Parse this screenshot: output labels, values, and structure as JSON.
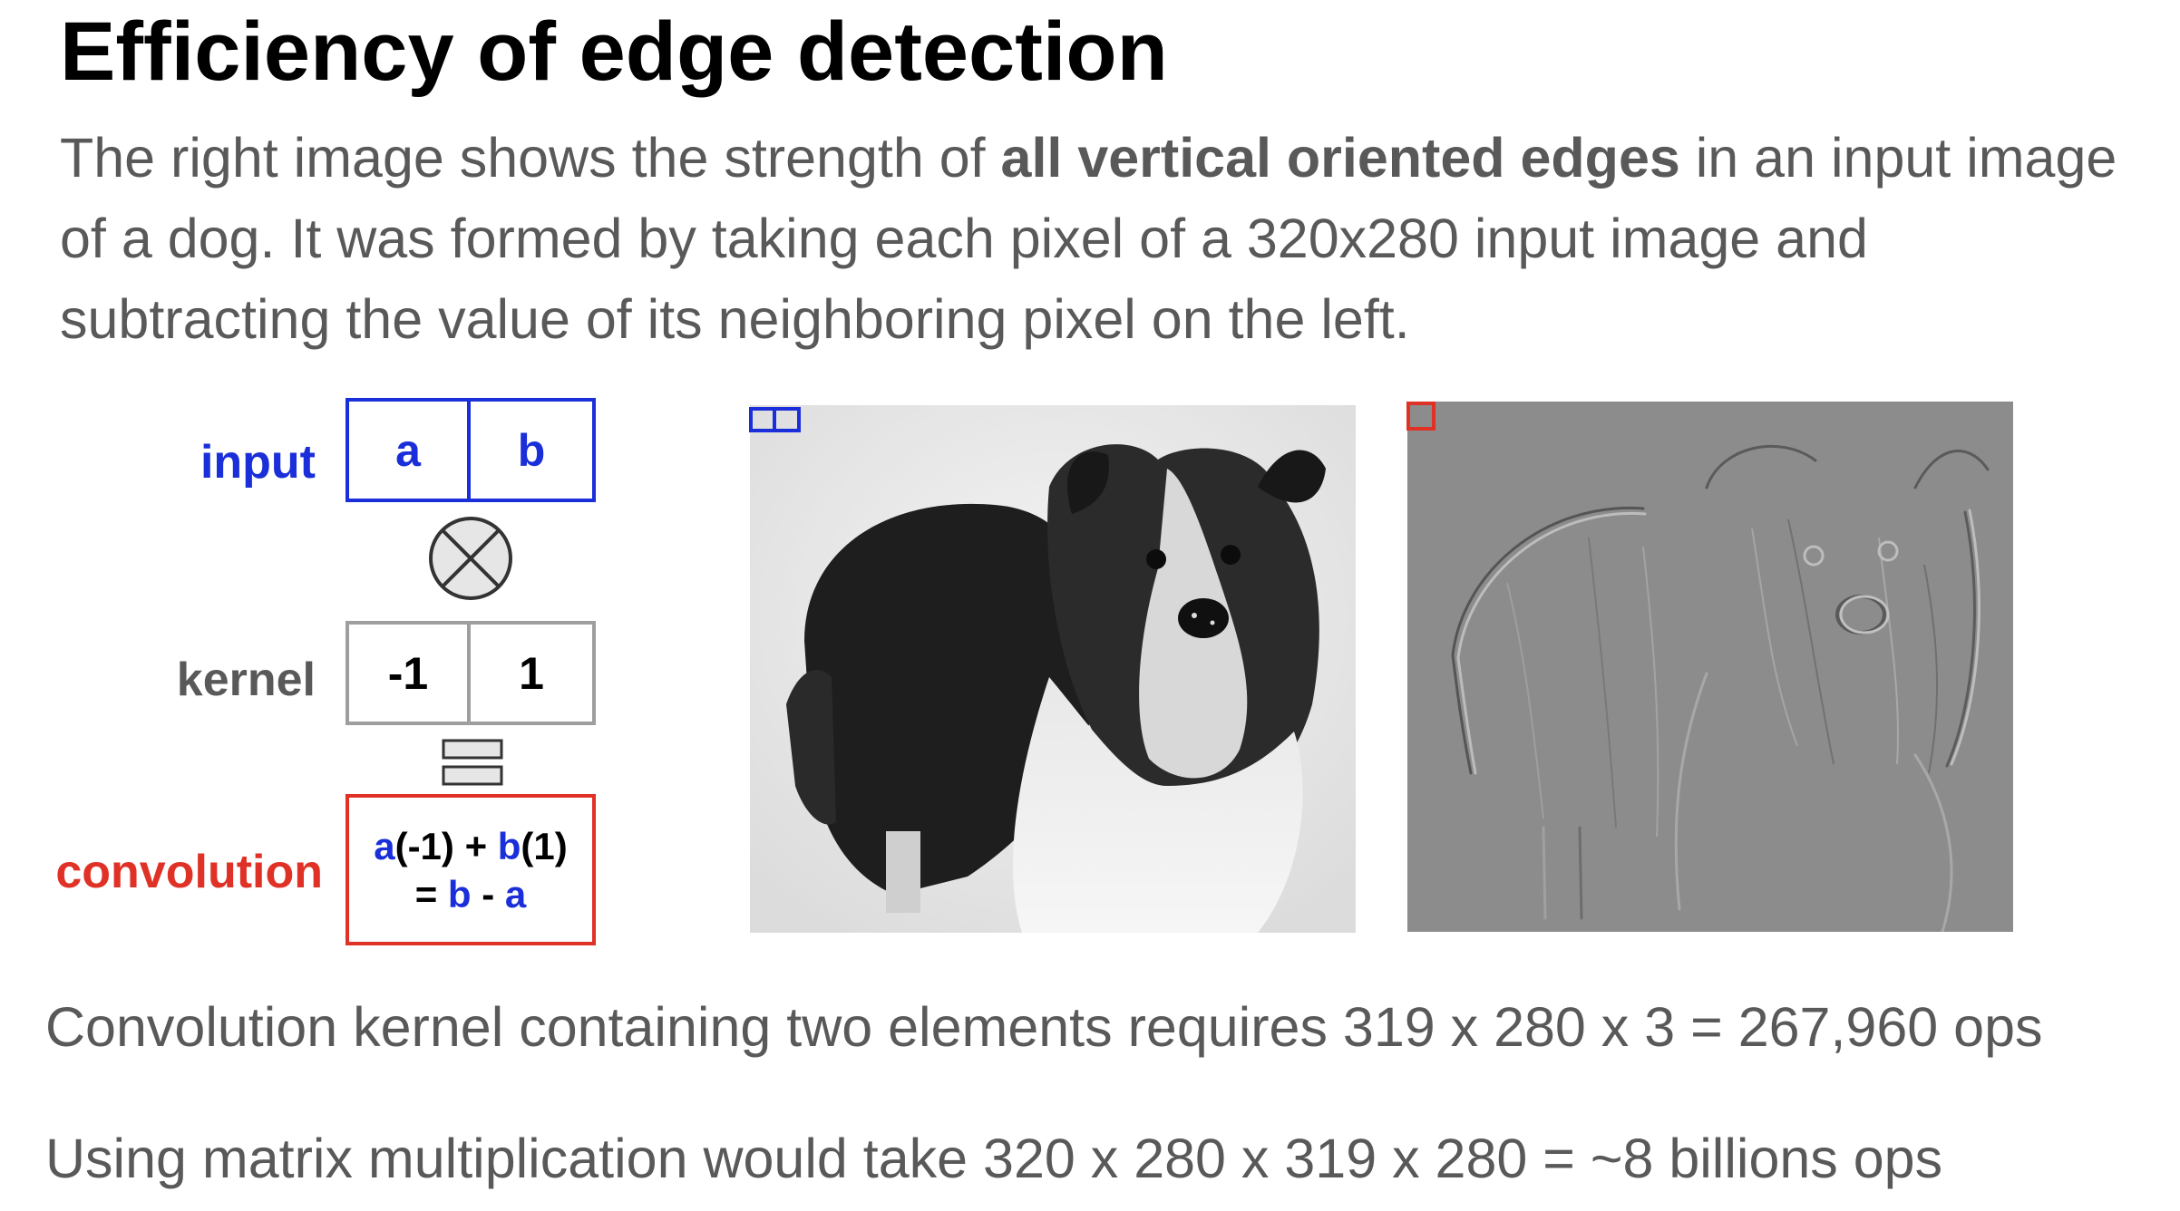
{
  "title": "Efficiency of edge detection",
  "intro": {
    "part1": "The right image shows the strength of ",
    "bold": "all vertical oriented edges",
    "part2": " in an input image of a dog. It was formed by taking each pixel of a 320x280 input image and subtracting the value of its neighboring pixel on the left."
  },
  "diagram": {
    "input_label": "input",
    "input_cells": [
      "a",
      "b"
    ],
    "kernel_label": "kernel",
    "kernel_cells": [
      "-1",
      "1"
    ],
    "conv_label": "convolution",
    "conv_line1": {
      "a": "a",
      "mid": "(-1) + ",
      "b": "b",
      "end": "(1)"
    },
    "conv_line2": {
      "pre": "= ",
      "b": "b",
      "mid": " - ",
      "a": "a"
    }
  },
  "footer": {
    "line1": "Convolution kernel containing two elements requires 319 x 280 x 3 = 267,960 ops",
    "line2": "Using matrix multiplication would take 320 x 280 x 319 x 280 = ~8 billions ops"
  },
  "colors": {
    "input": "#1a2fd9",
    "kernel": "#9e9e9e",
    "convolution": "#e03127",
    "text": "#595959"
  }
}
